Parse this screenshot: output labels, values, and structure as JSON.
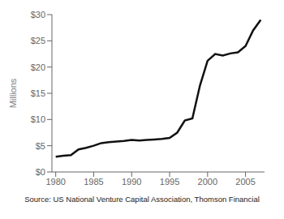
{
  "chart_data": {
    "type": "line",
    "x": [
      1980,
      1981,
      1982,
      1983,
      1984,
      1985,
      1986,
      1987,
      1988,
      1989,
      1990,
      1991,
      1992,
      1993,
      1994,
      1995,
      1996,
      1997,
      1998,
      1999,
      2000,
      2001,
      2002,
      2003,
      2004,
      2005,
      2006,
      2007
    ],
    "values": [
      2.9,
      3.1,
      3.2,
      4.3,
      4.6,
      5.0,
      5.5,
      5.7,
      5.8,
      5.9,
      6.1,
      6.0,
      6.1,
      6.2,
      6.3,
      6.5,
      7.5,
      9.8,
      10.2,
      16.5,
      21.2,
      22.5,
      22.2,
      22.6,
      22.8,
      24.0,
      27.0,
      29.0
    ],
    "color": "#111111",
    "xlim": [
      1979.5,
      2007.5
    ],
    "xticks": [
      1980,
      1985,
      1990,
      1995,
      2000,
      2005
    ],
    "ylim": [
      0,
      30
    ],
    "yticks": [
      {
        "value": 0,
        "label": "$0"
      },
      {
        "value": 5,
        "label": "$5"
      },
      {
        "value": 10,
        "label": "$10"
      },
      {
        "value": 15,
        "label": "$15"
      },
      {
        "value": 20,
        "label": "$20"
      },
      {
        "value": 25,
        "label": "$25"
      },
      {
        "value": 30,
        "label": "$30"
      }
    ],
    "ylabel": "Millions",
    "annotations": [
      "Source: US National Venture Capital Association, Thomson Financial"
    ],
    "grid": false
  }
}
